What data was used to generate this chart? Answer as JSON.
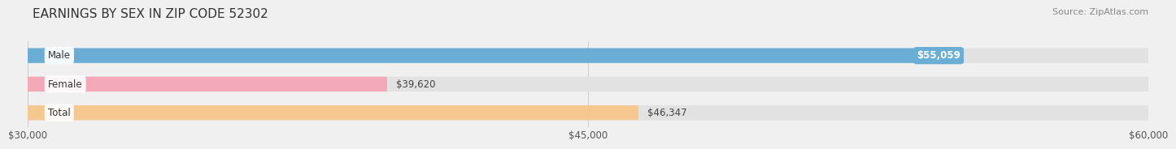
{
  "title": "EARNINGS BY SEX IN ZIP CODE 52302",
  "source": "Source: ZipAtlas.com",
  "categories": [
    "Male",
    "Female",
    "Total"
  ],
  "values": [
    55059,
    39620,
    46347
  ],
  "bar_colors": [
    "#6aaed6",
    "#f4a9b8",
    "#f5c890"
  ],
  "label_values": [
    "$55,059",
    "$39,620",
    "$46,347"
  ],
  "label_inside": [
    true,
    false,
    false
  ],
  "xmin": 30000,
  "xmax": 60000,
  "xticks": [
    30000,
    45000,
    60000
  ],
  "xtick_labels": [
    "$30,000",
    "$45,000",
    "$60,000"
  ],
  "background_color": "#f0f0f0",
  "bar_background_color": "#e2e2e2",
  "title_fontsize": 11,
  "source_fontsize": 8,
  "label_fontsize": 8.5,
  "tick_fontsize": 8.5,
  "category_fontsize": 8.5,
  "bar_height": 0.52,
  "figwidth": 14.06,
  "figheight": 1.96
}
